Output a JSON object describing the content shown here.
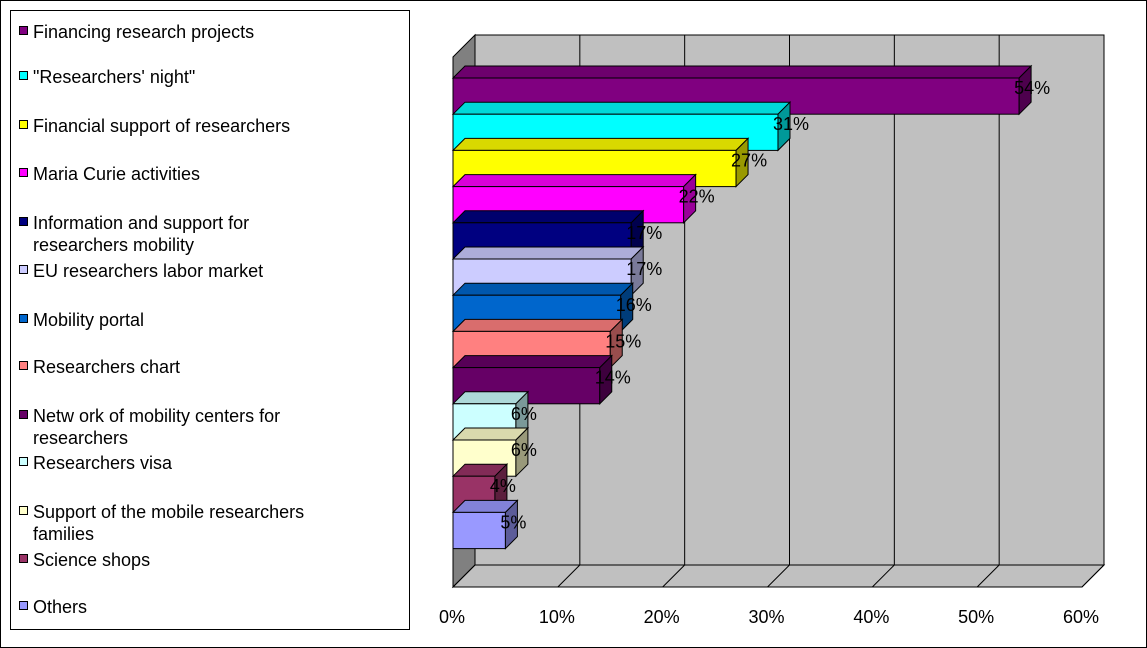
{
  "chart_data": {
    "type": "bar",
    "orientation": "horizontal",
    "style": "3d",
    "grid": true,
    "legend_position": "left",
    "xlim": [
      0,
      60
    ],
    "x_ticks": [
      "0%",
      "10%",
      "20%",
      "30%",
      "40%",
      "50%",
      "60%"
    ],
    "categories": [
      "Financing research projects",
      "\"Researchers' night\"",
      "Financial support of researchers",
      "Maria Curie activities",
      "Information and support for researchers mobility",
      "EU researchers labor market",
      "Mobility portal",
      "Researchers chart",
      "Netw ork of mobility centers for researchers",
      "Researchers visa",
      "Support of the mobile researchers families",
      "Science shops",
      "Others"
    ],
    "legend_labels": [
      "Financing research projects",
      "\"Researchers' night\"",
      "Financial support of researchers",
      "Maria Curie activities",
      "Information and support for\nresearchers mobility",
      "EU researchers labor market",
      "Mobility portal",
      "Researchers chart",
      "Netw ork of mobility centers for\nresearchers",
      "Researchers visa",
      "Support of the mobile researchers\nfamilies",
      "Science shops",
      "Others"
    ],
    "values": [
      54,
      31,
      27,
      22,
      17,
      17,
      16,
      15,
      14,
      6,
      6,
      4,
      5
    ],
    "data_labels": [
      "54%",
      "31%",
      "27%",
      "22%",
      "17%",
      "17%",
      "16%",
      "15%",
      "14%",
      "6%",
      "6%",
      "4%",
      "5%"
    ],
    "colors": [
      "#800080",
      "#00FFFF",
      "#FFFF00",
      "#FF00FF",
      "#000080",
      "#CCCCFF",
      "#0066CC",
      "#FF8080",
      "#660066",
      "#CCFFFF",
      "#FFFFCC",
      "#993366",
      "#9999FF"
    ],
    "plot_background": "#C0C0C0"
  }
}
